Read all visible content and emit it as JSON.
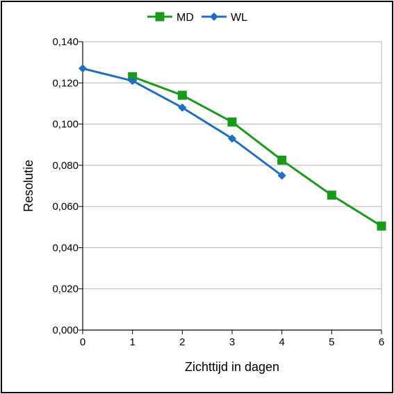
{
  "chart_data": {
    "type": "line",
    "xlabel": "Zichttijd in dagen",
    "ylabel": "Resolutie",
    "xlim": [
      0,
      6
    ],
    "ylim": [
      0,
      0.14
    ],
    "x_ticks": [
      "0",
      "1",
      "2",
      "3",
      "4",
      "5",
      "6"
    ],
    "y_ticks": [
      "0,000",
      "0,020",
      "0,040",
      "0,060",
      "0,080",
      "0,100",
      "0,120",
      "0,140"
    ],
    "grid": "horizontal",
    "legend_position": "top-center",
    "series": [
      {
        "name": "MD",
        "color": "#1a9a1a",
        "marker": "square",
        "x": [
          1,
          2,
          3,
          4,
          5,
          6
        ],
        "y": [
          0.123,
          0.114,
          0.101,
          0.0825,
          0.0655,
          0.0505
        ]
      },
      {
        "name": "WL",
        "color": "#1f6fc0",
        "marker": "diamond",
        "x": [
          0,
          1,
          2,
          3,
          4
        ],
        "y": [
          0.127,
          0.121,
          0.108,
          0.093,
          0.075
        ]
      }
    ]
  }
}
